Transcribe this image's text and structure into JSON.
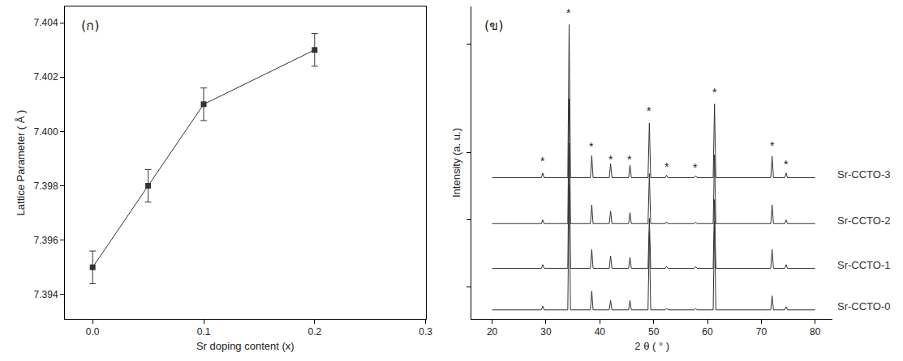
{
  "chart_data": [
    {
      "type": "line",
      "panel_label": "(ก)",
      "x_label": "Sr doping content (x)",
      "y_label": "Lattice Parameter ( Å )",
      "x": [
        0,
        0.05,
        0.1,
        0.2
      ],
      "values": [
        7.395,
        7.398,
        7.401,
        7.403
      ],
      "error": [
        0.0006,
        0.0006,
        0.0006,
        0.0006
      ],
      "color": "#333333",
      "marker": "square",
      "line_style": "solid",
      "xlim": [
        -0.025,
        0.3
      ],
      "xticks": [
        {
          "value": 0,
          "label": "0.0"
        },
        {
          "value": 0.1,
          "label": "0.1"
        },
        {
          "value": 0.2,
          "label": "0.2"
        },
        {
          "value": 0.3,
          "label": "0.3"
        }
      ],
      "ylim": [
        7.3931,
        7.4046
      ],
      "yticks": [
        7.394,
        7.396,
        7.398,
        {
          "value": 7.4,
          "label": "7.400"
        },
        7.402,
        7.404
      ],
      "grid": false
    },
    {
      "type": "line",
      "panel_label": "(ข)",
      "x_label": "2 θ ( ° )",
      "y_label": "Intensity (a. u.)",
      "x": [
        20,
        29.15,
        29.4,
        29.65,
        34.05,
        34.3,
        34.55,
        38.25,
        38.5,
        38.75,
        41.75,
        42.0,
        42.25,
        45.35,
        45.6,
        45.85,
        48.95,
        49.2,
        49.45,
        52.15,
        52.4,
        52.65,
        57.55,
        57.8,
        58.05,
        61.05,
        61.3,
        61.55,
        71.75,
        72.0,
        72.25,
        74.35,
        74.6,
        74.85,
        80
      ],
      "series": [
        {
          "name": "Sr-CCTO-3",
          "color": "#333333",
          "values": [
            45.2,
            45.2,
            46.7,
            45.2,
            45.2,
            94.2,
            45.2,
            45.2,
            52.2,
            45.2,
            45.2,
            49.7,
            45.2,
            45.2,
            49.2,
            45.2,
            45.2,
            62.7,
            45.2,
            45.2,
            46.0,
            45.2,
            45.2,
            45.8,
            45.2,
            45.2,
            68.8,
            45.2,
            45.2,
            52.0,
            45.2,
            45.2,
            46.7,
            45.2,
            45.2
          ]
        },
        {
          "name": "Sr-CCTO-2",
          "color": "#333333",
          "values": [
            30.5,
            30.5,
            31.7,
            30.5,
            30.5,
            70.5,
            30.5,
            30.5,
            36.5,
            30.5,
            30.5,
            34.5,
            30.5,
            30.5,
            34.0,
            30.5,
            30.5,
            46.5,
            30.5,
            30.5,
            31.1,
            30.5,
            30.5,
            31.0,
            30.5,
            30.5,
            52.5,
            30.5,
            30.5,
            36.5,
            30.5,
            30.5,
            31.7,
            30.5,
            30.5
          ]
        },
        {
          "name": "Sr-CCTO-1",
          "color": "#333333",
          "values": [
            16.2,
            16.2,
            17.4,
            16.2,
            16.2,
            56.2,
            16.2,
            16.2,
            22.2,
            16.2,
            16.2,
            20.2,
            16.2,
            16.2,
            19.7,
            16.2,
            16.2,
            32.2,
            16.2,
            16.2,
            16.8,
            16.2,
            16.2,
            16.7,
            16.2,
            16.2,
            38.2,
            16.2,
            16.2,
            22.2,
            16.2,
            16.2,
            17.4,
            16.2,
            16.2
          ]
        },
        {
          "name": "Sr-CCTO-0",
          "color": "#333333",
          "values": [
            2.9,
            2.9,
            4.1,
            2.9,
            2.9,
            42.9,
            2.9,
            2.9,
            8.9,
            2.9,
            2.9,
            5.9,
            2.9,
            2.9,
            5.9,
            2.9,
            2.9,
            27.9,
            2.9,
            2.9,
            3.4,
            2.9,
            2.9,
            3.3,
            2.9,
            2.9,
            30.9,
            2.9,
            2.9,
            7.4,
            2.9,
            2.9,
            3.9,
            2.9,
            2.9
          ]
        }
      ],
      "annotations": [
        {
          "text": "*",
          "x": 29.4,
          "y": 50.4
        },
        {
          "text": "*",
          "x": 34.3,
          "y": 98.0
        },
        {
          "text": "*",
          "x": 38.5,
          "y": 55.3
        },
        {
          "text": "*",
          "x": 42.0,
          "y": 51.0
        },
        {
          "text": "*",
          "x": 45.6,
          "y": 51.0
        },
        {
          "text": "*",
          "x": 49.2,
          "y": 66.5
        },
        {
          "text": "*",
          "x": 52.4,
          "y": 48.6
        },
        {
          "text": "*",
          "x": 57.8,
          "y": 48.4
        },
        {
          "text": "*",
          "x": 61.3,
          "y": 72.5
        },
        {
          "text": "*",
          "x": 72.0,
          "y": 55.5
        },
        {
          "text": "*",
          "x": 74.6,
          "y": 49.5
        }
      ],
      "xlim": [
        16.2,
        83.2
      ],
      "xticks": [
        20,
        30,
        40,
        50,
        60,
        70,
        80
      ],
      "ylim": [
        0,
        100
      ],
      "yticks": [
        10.3,
        31.7,
        53.3,
        88
      ],
      "tick_labels": "x",
      "grid": false
    }
  ]
}
